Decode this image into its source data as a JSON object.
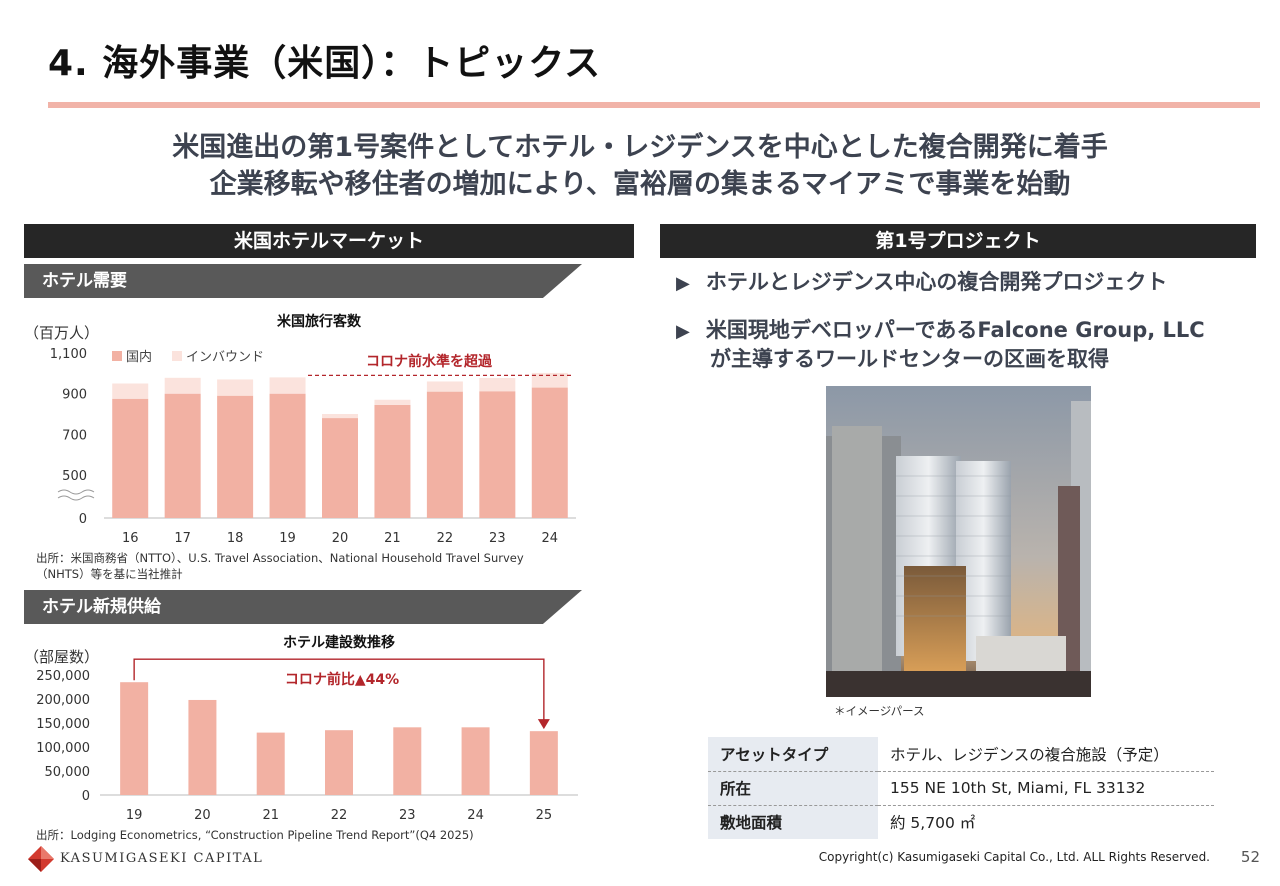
{
  "page": {
    "title": "4. 海外事業（米国）：トピックス",
    "headline_line1": "米国進出の第1号案件としてホテル・レジデンスを中心とした複合開発に着手",
    "headline_line2": "企業移転や移住者の増加により、富裕層の集まるマイアミで事業を始動",
    "page_number": "52",
    "copyright": "Copyright(c) Kasumigaseki Capital Co., Ltd. ALL Rights Reserved.",
    "logo_text": "KASUMIGASEKI CAPITAL"
  },
  "left": {
    "header": "米国ホテルマーケット",
    "section1_tab": "ホテル需要",
    "section2_tab": "ホテル新規供給",
    "note1_line1": "出所：米国商務省（NTTO）、U.S. Travel Association、National Household Travel Survey",
    "note1_line2": "（NHTS）等を基に当社推計",
    "note2": "出所：Lodging Econometrics, “Construction Pipeline Trend Report”(Q4 2025)"
  },
  "right": {
    "header": "第1号プロジェクト",
    "bullet1": "ホテルとレジデンス中心の複合開発プロジェクト",
    "bullet2_line1": "米国現地デベロッパーであるFalcone Group, LLC",
    "bullet2_line2": "が主導するワールドセンターの区画を取得",
    "image_caption": "＊イメージパース",
    "table": [
      {
        "key": "アセットタイプ",
        "value": "ホテル、レジデンスの複合施設（予定）"
      },
      {
        "key": "所在",
        "value": "155 NE 10th St, Miami, FL 33132"
      },
      {
        "key": "敷地面積",
        "value": "約 5,700 ㎡"
      }
    ]
  },
  "colors": {
    "domestic": "#f2b1a3",
    "inbound": "#fbe3dd",
    "accent_red": "#b3262b",
    "dark_header": "#262626",
    "tab_grey": "#595959"
  },
  "chart_data": [
    {
      "type": "bar",
      "title": "米国旅行客数",
      "ylabel": "（百万人）",
      "categories": [
        "16",
        "17",
        "18",
        "19",
        "20",
        "21",
        "22",
        "23",
        "24"
      ],
      "series": [
        {
          "name": "国内",
          "values": [
            875,
            900,
            890,
            900,
            780,
            845,
            910,
            912,
            930
          ]
        },
        {
          "name": "インバウンド",
          "values": [
            75,
            78,
            80,
            80,
            20,
            25,
            50,
            65,
            72
          ]
        }
      ],
      "yticks": [
        "0",
        "500",
        "700",
        "900",
        "1,100"
      ],
      "ylim": [
        0,
        1100
      ],
      "axis_break": true,
      "annotation": "コロナ前水準を超過",
      "legend": "top-left"
    },
    {
      "type": "bar",
      "title": "ホテル建設数推移",
      "ylabel": "（部屋数）",
      "categories": [
        "19",
        "20",
        "21",
        "22",
        "23",
        "24",
        "25"
      ],
      "values": [
        235000,
        198000,
        130000,
        135000,
        141000,
        141000,
        133000
      ],
      "yticks": [
        "0",
        "50,000",
        "100,000",
        "150,000",
        "200,000",
        "250,000"
      ],
      "ylim": [
        0,
        250000
      ],
      "annotation": "コロナ前比▲44%"
    }
  ]
}
